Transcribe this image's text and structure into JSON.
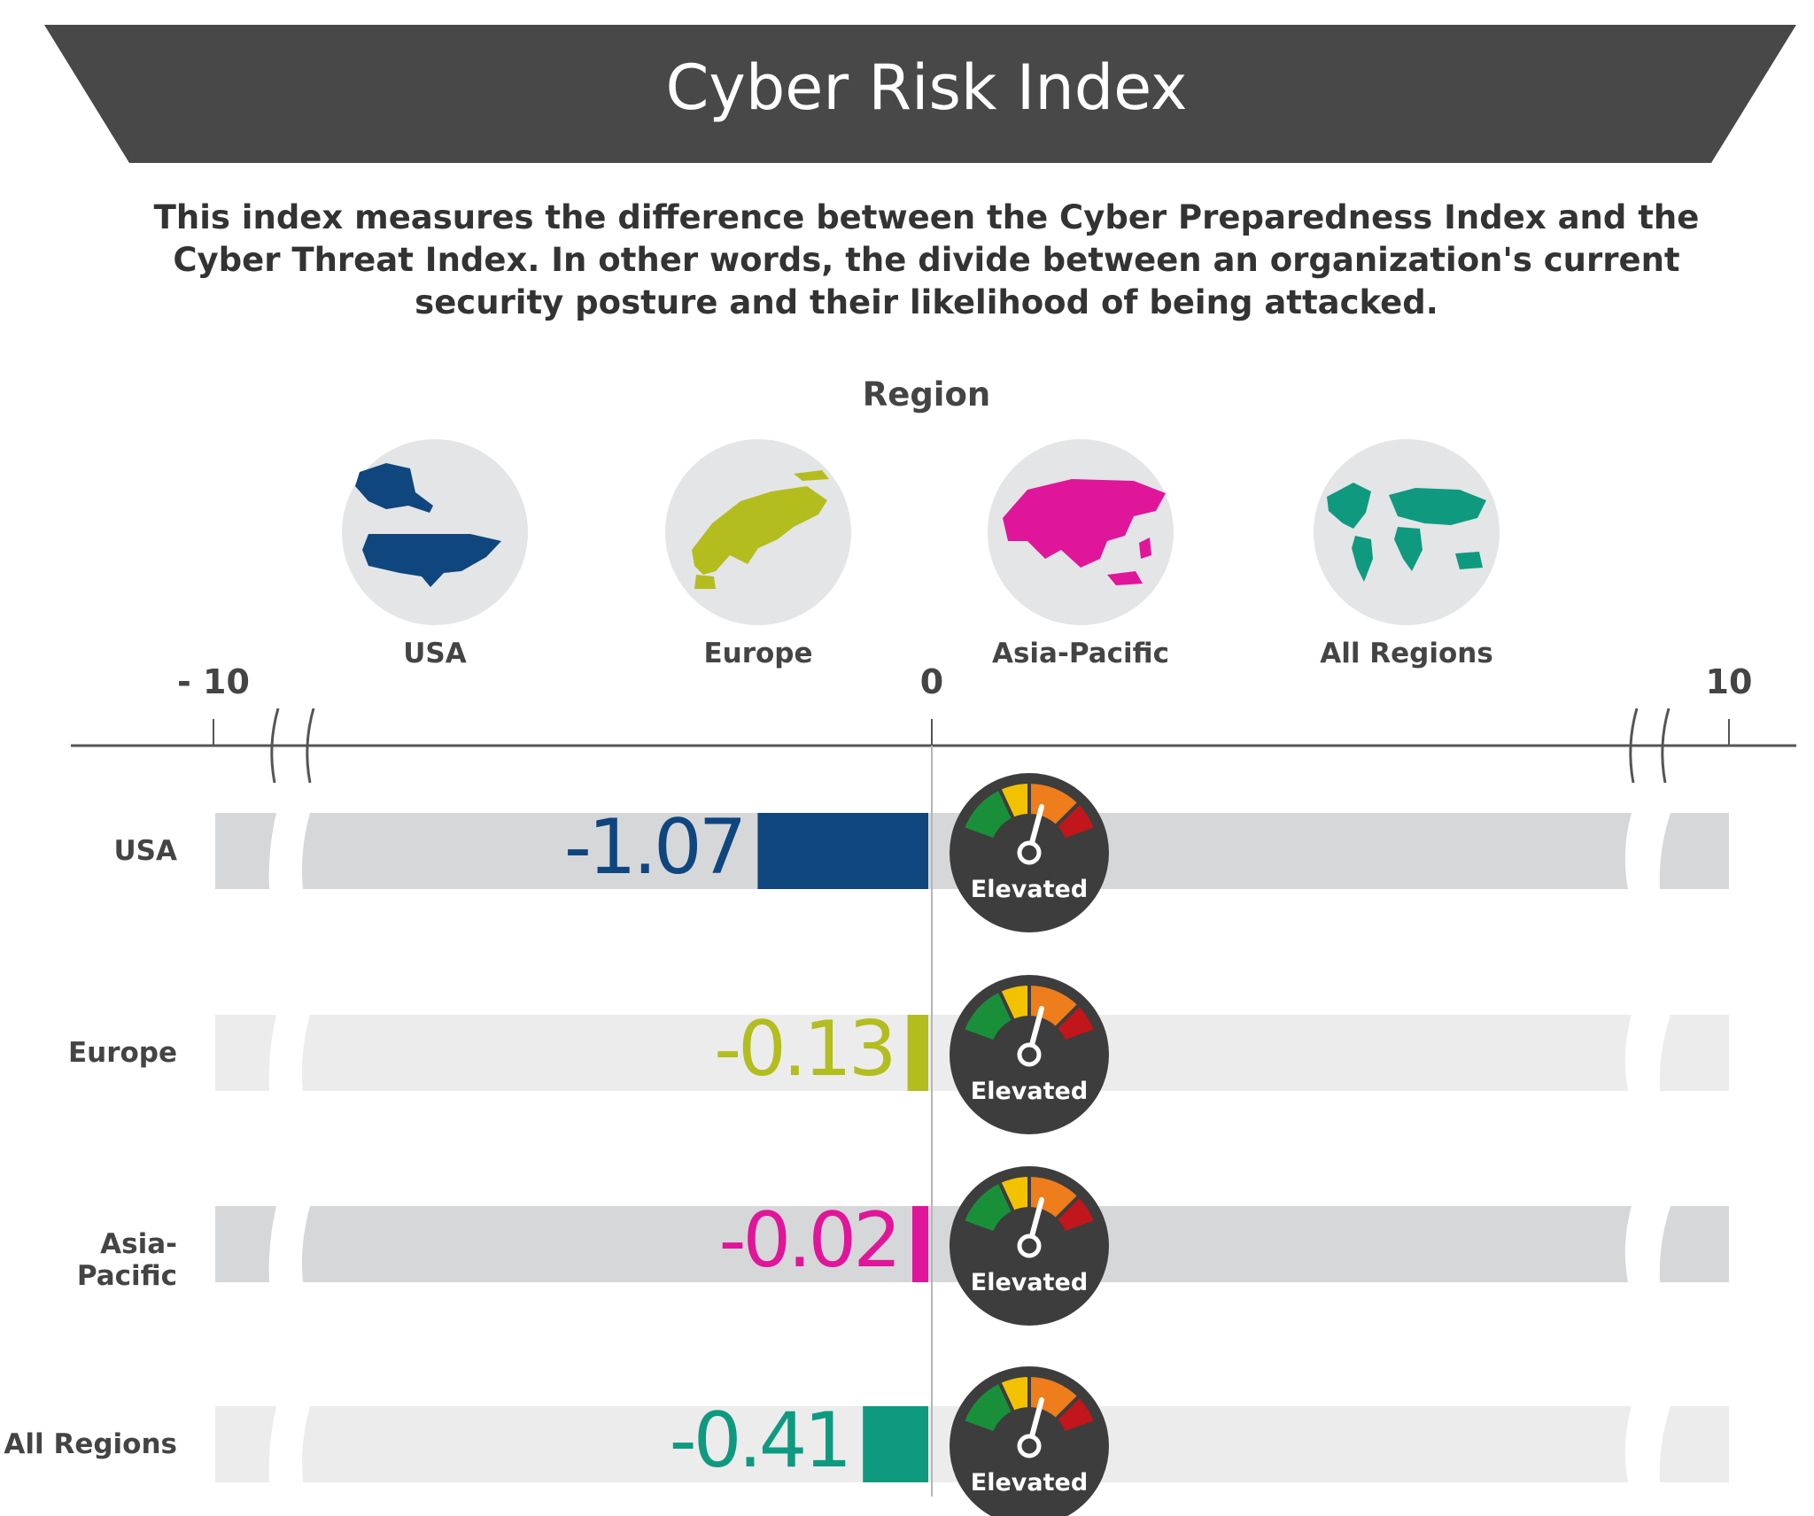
{
  "title": "Cyber Risk Index",
  "description": "This index measures the difference between the Cyber Preparedness Index and the Cyber Threat Index. In other words, the divide between an organization's current security posture and their likelihood of being attacked.",
  "region_heading": "Region",
  "regions": [
    {
      "name": "USA",
      "icon": "usa-map-icon",
      "color": "#0f467e"
    },
    {
      "name": "Europe",
      "icon": "europe-map-icon",
      "color": "#b3bd1e"
    },
    {
      "name": "Asia-Pacific",
      "icon": "asia-pacific-map-icon",
      "color": "#e0169a"
    },
    {
      "name": "All Regions",
      "icon": "world-map-icon",
      "color": "#0f9a80"
    }
  ],
  "chart_data": {
    "type": "bar",
    "orientation": "horizontal",
    "title": "Cyber Risk Index",
    "axis_ticks": [
      "- 10",
      "0",
      "10"
    ],
    "xlim": [
      -10,
      10
    ],
    "axis_breaks": true,
    "categories": [
      "USA",
      "Europe",
      "Asia-Pacific",
      "All Regions"
    ],
    "values": [
      -1.07,
      -0.13,
      -0.02,
      -0.41
    ],
    "value_labels": [
      "-1.07",
      "-0.13",
      "-0.02",
      "-0.41"
    ],
    "colors": [
      "#0f467e",
      "#b3bd1e",
      "#e0169a",
      "#0f9a80"
    ],
    "gauges": [
      "Elevated",
      "Elevated",
      "Elevated",
      "Elevated"
    ],
    "gauge_colors": [
      "#1a8f3a",
      "#f2c200",
      "#ee7d1c",
      "#c0161c"
    ]
  }
}
